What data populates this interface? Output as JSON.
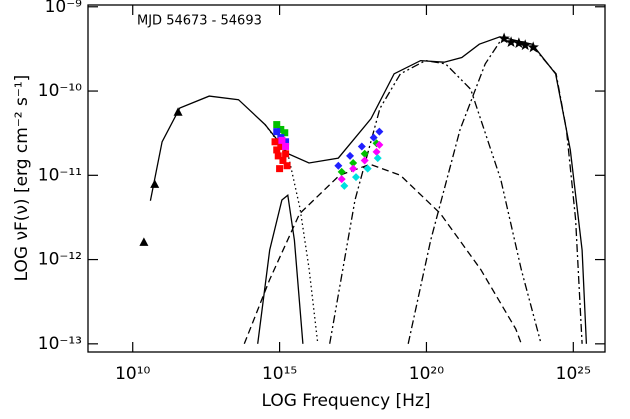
{
  "chart_data": {
    "type": "sed",
    "annotation": "MJD 54673 - 54693",
    "x_label": "LOG Frequency [Hz]",
    "y_label": "LOG νF(ν) [erg cm⁻² s⁻¹]",
    "xscale": "log",
    "yscale": "log",
    "xlim": [
      300000000.0,
      1.2e+26
    ],
    "ylim": [
      8e-14,
      1.05e-09
    ],
    "xticks": [
      {
        "value": 10000000000.0,
        "label": "10¹⁰"
      },
      {
        "value": 1000000000000000.0,
        "label": "10¹⁵"
      },
      {
        "value": 1e+20,
        "label": "10²⁰"
      },
      {
        "value": 1e+25,
        "label": "10²⁵"
      }
    ],
    "yticks": [
      {
        "value": 1e-13,
        "label": "10⁻¹³"
      },
      {
        "value": 1e-12,
        "label": "10⁻¹²"
      },
      {
        "value": 1e-11,
        "label": "10⁻¹¹"
      },
      {
        "value": 1e-10,
        "label": "10⁻¹⁰"
      },
      {
        "value": 1e-09,
        "label": "10⁻⁹"
      }
    ],
    "series": [
      {
        "kind": "line",
        "dash": "solid",
        "color": "#000000",
        "x": [
          40000000000.0,
          100000000000.0,
          400000000000.0,
          4000000000000.0,
          40000000000000.0,
          320000000000000.0,
          2000000000000000.0,
          1e+16,
          1e+17,
          1.3e+18,
          7.9e+18,
          6.3e+19,
          4e+20,
          1.6e+21,
          6.3e+21,
          3.2e+22,
          4e+23,
          2.5e+24,
          7.9e+24,
          2e+25,
          2.8e+25
        ],
        "values": [
          5e-12,
          2.5e-11,
          6.3e-11,
          8.7e-11,
          7.9e-11,
          4e-11,
          1.8e-11,
          1.4e-11,
          1.6e-11,
          4.7e-11,
          1.6e-10,
          2.3e-10,
          2.2e-10,
          2.5e-10,
          3.6e-10,
          4.4e-10,
          3.6e-10,
          1.6e-10,
          2e-11,
          1.3e-12,
          1e-13
        ]
      },
      {
        "kind": "line",
        "dash": "dotted",
        "color": "#000000",
        "x": [
          320000000000000.0,
          2000000000000000.0,
          5000000000000000.0,
          1e+16,
          2e+16
        ],
        "values": [
          4e-11,
          1.7e-11,
          4e-12,
          7.9e-13,
          1e-13
        ]
      },
      {
        "kind": "line",
        "dash": "solid",
        "color": "#000000",
        "x": [
          180000000000000.0,
          460000000000000.0,
          1200000000000000.0,
          1900000000000000.0,
          3200000000000000.0,
          6200000000000000.0
        ],
        "values": [
          1e-13,
          1.3e-12,
          5.1e-12,
          5.8e-12,
          1.7e-12,
          1e-13
        ]
      },
      {
        "kind": "line",
        "dash": "dashed",
        "color": "#000000",
        "x": [
          63000000000000.0,
          460000000000000.0,
          4800000000000000.0,
          1.1e+17,
          1.2e+18,
          1.3e+19,
          3e+20,
          7.1e+21,
          1.1e+23,
          1.7e+23
        ],
        "values": [
          1e-13,
          5.8e-13,
          3.5e-12,
          1e-11,
          1.35e-11,
          1e-11,
          3.5e-12,
          7.6e-13,
          1.5e-13,
          1e-13
        ]
      },
      {
        "kind": "line",
        "dash": "dashdotdot",
        "color": "#000000",
        "x": [
          5.1e+16,
          3.7e+17,
          2.6e+18,
          1.3e+19,
          9.3e+19,
          4.5e+20,
          3.2e+21,
          3.4e+22,
          1.7e+23,
          8e+23
        ],
        "values": [
          1e-13,
          5.1e-12,
          6.2e-11,
          1.6e-10,
          2.3e-10,
          2.1e-10,
          1.05e-10,
          8.9e-12,
          7.6e-13,
          1e-13
        ]
      },
      {
        "kind": "line",
        "dash": "dashdot",
        "color": "#000000",
        "x": [
          2.4e+19,
          1.4e+20,
          1.4e+21,
          1e+22,
          3.4e+22,
          3.6e+23,
          2.6e+24,
          5.8e+24,
          1.2e+25,
          2e+25
        ],
        "values": [
          1e-13,
          1.7e-12,
          3.5e-11,
          2.1e-10,
          4e-10,
          3.6e-10,
          1.6e-10,
          3.5e-11,
          3e-12,
          1e-13
        ]
      },
      {
        "kind": "points",
        "marker": "triangle",
        "color": "#000000",
        "x": [
          24000000000.0,
          56000000000.0,
          350000000000.0
        ],
        "values": [
          1.6e-12,
          7.8e-12,
          5.6e-11
        ]
      },
      {
        "kind": "points",
        "marker": "star",
        "color": "#000000",
        "x": [
          4.4e+22,
          7.6e+22,
          1.4e+23,
          2.3e+23,
          4.3e+23
        ],
        "values": [
          4.2e-10,
          3.8e-10,
          3.7e-10,
          3.5e-10,
          3.3e-10
        ]
      },
      {
        "kind": "points",
        "marker": "square",
        "color": "#00c000",
        "x": [
          800000000000000.0,
          1100000000000000.0,
          1500000000000000.0
        ],
        "values": [
          4e-11,
          3.5e-11,
          3.2e-11
        ]
      },
      {
        "kind": "points",
        "marker": "square",
        "color": "#2020ff",
        "x": [
          800000000000000.0,
          1100000000000000.0,
          1600000000000000.0
        ],
        "values": [
          3.3e-11,
          2.8e-11,
          2.5e-11
        ]
      },
      {
        "kind": "points",
        "marker": "square",
        "color": "#ff0000",
        "x": [
          700000000000000.0,
          800000000000000.0,
          900000000000000.0,
          1100000000000000.0,
          1300000000000000.0,
          1600000000000000.0,
          1800000000000000.0,
          1000000000000000.0
        ],
        "values": [
          2.5e-11,
          2e-11,
          1.7e-11,
          2.2e-11,
          1.5e-11,
          1.8e-11,
          1.3e-11,
          1.2e-11
        ]
      },
      {
        "kind": "points",
        "marker": "square",
        "color": "#ff00ff",
        "x": [
          1200000000000000.0,
          1600000000000000.0
        ],
        "values": [
          2.6e-11,
          2.2e-11
        ]
      },
      {
        "kind": "points",
        "marker": "diamond",
        "color": "#2020ff",
        "x": [
          1e+17,
          2.5e+17,
          6.3e+17,
          1.6e+18,
          2.5e+18
        ],
        "values": [
          1.3e-11,
          1.7e-11,
          2.2e-11,
          2.8e-11,
          3.3e-11
        ]
      },
      {
        "kind": "points",
        "marker": "diamond",
        "color": "#00c000",
        "x": [
          1.3e+17,
          3.2e+17,
          7.9e+17,
          2e+18
        ],
        "values": [
          1.1e-11,
          1.4e-11,
          1.8e-11,
          2.4e-11
        ]
      },
      {
        "kind": "points",
        "marker": "diamond",
        "color": "#ff00ff",
        "x": [
          1.3e+17,
          3.2e+17,
          7.9e+17,
          2e+18,
          2.5e+18
        ],
        "values": [
          9e-12,
          1.2e-11,
          1.5e-11,
          1.9e-11,
          2.3e-11
        ]
      },
      {
        "kind": "points",
        "marker": "diamond",
        "color": "#00e0e0",
        "x": [
          1.6e+17,
          4e+17,
          1e+18,
          2.2e+18
        ],
        "values": [
          7.5e-12,
          9.5e-12,
          1.2e-11,
          1.6e-11
        ]
      }
    ]
  }
}
